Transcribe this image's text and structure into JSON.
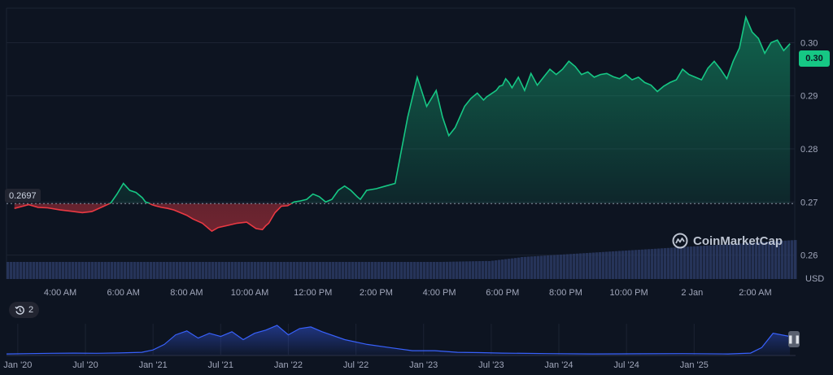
{
  "currency": "USD",
  "current_price_label": "0.30",
  "baseline_label": "0.2697",
  "history_button": {
    "icon": "history-icon",
    "label": "2"
  },
  "watermark": {
    "icon": "coinmarketcap-logo",
    "label": "CoinMarketCap"
  },
  "colors": {
    "up": "#16c784",
    "down": "#ea3943",
    "volume": "#2c3a63",
    "nav": "#3861fb",
    "background": "#0d1421"
  },
  "chart_data": [
    {
      "type": "area",
      "baseline": 0.2697,
      "ylim": [
        0.2555,
        0.3065
      ],
      "yticks": [
        0.26,
        0.27,
        0.28,
        0.29,
        0.3
      ],
      "ytick_labels": [
        "0.26",
        "0.27",
        "0.28",
        "0.29",
        "0.30"
      ],
      "xtick_labels": [
        "4:00 AM",
        "6:00 AM",
        "8:00 AM",
        "10:00 AM",
        "12:00 PM",
        "2:00 PM",
        "4:00 PM",
        "6:00 PM",
        "8:00 PM",
        "10:00 PM",
        "2 Jan",
        "2:00 AM"
      ],
      "x_hours": [
        2.55,
        3.0,
        3.3,
        3.6,
        4.0,
        4.3,
        4.7,
        5.0,
        5.3,
        5.6,
        5.8,
        6.0,
        6.2,
        6.4,
        6.6,
        6.7,
        6.8,
        6.9,
        7.0,
        7.2,
        7.4,
        7.6,
        7.8,
        8.0,
        8.2,
        8.5,
        8.8,
        9.0,
        9.3,
        9.6,
        9.9,
        10.2,
        10.4,
        10.5,
        10.6,
        10.7,
        10.8,
        11.0,
        11.2,
        11.4,
        11.6,
        11.8,
        12.0,
        12.2,
        12.4,
        12.6,
        12.8,
        13.0,
        13.2,
        13.4,
        13.5,
        13.7,
        14.0,
        14.3,
        14.6,
        15.0,
        15.3,
        15.6,
        15.9,
        16.1,
        16.3,
        16.5,
        16.8,
        17.0,
        17.2,
        17.4,
        17.5,
        17.6,
        17.8,
        17.9,
        18.0,
        18.1,
        18.2,
        18.3,
        18.5,
        18.7,
        18.9,
        19.1,
        19.3,
        19.5,
        19.7,
        19.9,
        20.1,
        20.3,
        20.5,
        20.7,
        20.9,
        21.1,
        21.3,
        21.5,
        21.7,
        21.9,
        22.1,
        22.3,
        22.5,
        22.7,
        22.9,
        23.1,
        23.3,
        23.5,
        23.7,
        23.9,
        24.1,
        24.3,
        24.5,
        24.7,
        24.9,
        25.1,
        25.3,
        25.5,
        25.7,
        25.9,
        26.1,
        26.3,
        26.5,
        26.7,
        26.9,
        27.1
      ],
      "values": [
        0.2688,
        0.2695,
        0.269,
        0.2689,
        0.2685,
        0.2683,
        0.268,
        0.2682,
        0.269,
        0.2698,
        0.2715,
        0.2735,
        0.2722,
        0.2718,
        0.2708,
        0.27,
        0.2698,
        0.2695,
        0.2693,
        0.269,
        0.2688,
        0.2685,
        0.268,
        0.2675,
        0.2668,
        0.266,
        0.2645,
        0.2652,
        0.2656,
        0.266,
        0.2662,
        0.265,
        0.2648,
        0.2655,
        0.266,
        0.267,
        0.268,
        0.2692,
        0.2693,
        0.27,
        0.2702,
        0.2705,
        0.2715,
        0.271,
        0.27,
        0.2705,
        0.2722,
        0.273,
        0.2722,
        0.271,
        0.2705,
        0.2722,
        0.2725,
        0.273,
        0.2735,
        0.286,
        0.2935,
        0.288,
        0.291,
        0.286,
        0.2825,
        0.284,
        0.288,
        0.2895,
        0.2905,
        0.2892,
        0.2898,
        0.2902,
        0.291,
        0.2918,
        0.292,
        0.2932,
        0.2925,
        0.2915,
        0.2935,
        0.291,
        0.2942,
        0.292,
        0.2935,
        0.295,
        0.294,
        0.295,
        0.2965,
        0.2955,
        0.294,
        0.2945,
        0.2935,
        0.294,
        0.2942,
        0.2936,
        0.2932,
        0.294,
        0.293,
        0.2935,
        0.2925,
        0.292,
        0.2908,
        0.2918,
        0.2925,
        0.293,
        0.295,
        0.294,
        0.2935,
        0.293,
        0.2952,
        0.2965,
        0.295,
        0.2932,
        0.2965,
        0.299,
        0.3048,
        0.302,
        0.3008,
        0.298,
        0.3,
        0.3005,
        0.2985,
        0.2998
      ]
    },
    {
      "type": "area",
      "xtick_labels": [
        "Jan '20",
        "Jul '20",
        "Jan '21",
        "Jul '21",
        "Jan '22",
        "Jul '22",
        "Jan '23",
        "Jul '23",
        "Jan '24",
        "Jul '24",
        "Jan '25"
      ],
      "x_months": [
        0,
        2,
        4,
        6,
        8,
        10,
        12,
        13,
        14,
        15,
        16,
        17,
        18,
        19,
        20,
        21,
        22,
        23,
        24,
        25,
        26,
        27,
        28,
        30,
        32,
        34,
        36,
        38,
        40,
        42,
        44,
        48,
        52,
        56,
        60,
        64,
        66,
        67,
        68,
        69.5
      ],
      "values": [
        0.01,
        0.012,
        0.014,
        0.015,
        0.014,
        0.016,
        0.02,
        0.035,
        0.07,
        0.13,
        0.155,
        0.11,
        0.14,
        0.12,
        0.15,
        0.1,
        0.14,
        0.16,
        0.19,
        0.13,
        0.17,
        0.18,
        0.15,
        0.1,
        0.07,
        0.05,
        0.03,
        0.03,
        0.02,
        0.018,
        0.015,
        0.012,
        0.01,
        0.011,
        0.012,
        0.01,
        0.015,
        0.05,
        0.14,
        0.12
      ]
    }
  ]
}
